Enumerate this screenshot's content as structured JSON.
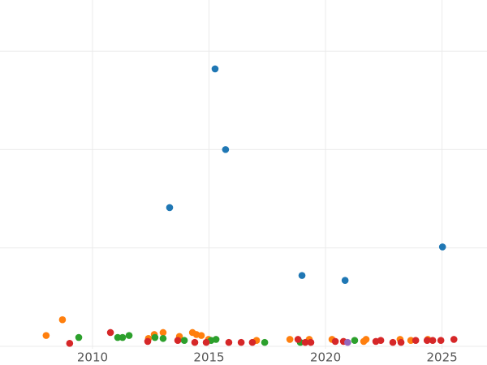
{
  "chart_data": {
    "type": "scatter",
    "xlim": [
      2006.03,
      2026.93
    ],
    "ylim": [
      -0.025,
      3.52
    ],
    "xticks": [
      2010,
      2015,
      2020,
      2025
    ],
    "ygrid": [
      0,
      1,
      2,
      3
    ],
    "grid": true,
    "series": [
      {
        "color": "#1f77b4",
        "x": [
          2015.26,
          2015.71,
          2013.31,
          2025.02,
          2018.99,
          2020.84
        ],
        "values": [
          2.82,
          2.0,
          1.41,
          1.01,
          0.72,
          0.67
        ]
      },
      {
        "color": "#ff7f0e",
        "x": [
          2008.01,
          2008.71,
          2012.4,
          2012.65,
          2013.03,
          2013.73,
          2014.29,
          2014.46,
          2014.67,
          2014.98,
          2017.04,
          2018.47,
          2019.3,
          2020.28,
          2021.64,
          2021.74,
          2023.2,
          2023.66,
          2024.39
        ],
        "values": [
          0.11,
          0.27,
          0.08,
          0.12,
          0.14,
          0.1,
          0.14,
          0.12,
          0.11,
          0.07,
          0.06,
          0.07,
          0.07,
          0.07,
          0.05,
          0.07,
          0.07,
          0.06,
          0.07
        ]
      },
      {
        "color": "#2ca02c",
        "x": [
          2009.41,
          2011.08,
          2011.29,
          2011.57,
          2012.68,
          2013.03,
          2013.94,
          2015.09,
          2015.3,
          2017.39,
          2018.92,
          2021.25
        ],
        "values": [
          0.09,
          0.09,
          0.09,
          0.11,
          0.09,
          0.08,
          0.06,
          0.06,
          0.07,
          0.04,
          0.04,
          0.06
        ]
      },
      {
        "color": "#d62728",
        "x": [
          2009.02,
          2010.77,
          2012.37,
          2013.66,
          2014.39,
          2014.88,
          2015.85,
          2016.38,
          2016.86,
          2018.82,
          2019.13,
          2019.37,
          2020.42,
          2020.77,
          2022.16,
          2022.37,
          2022.89,
          2023.24,
          2023.87,
          2024.36,
          2024.6,
          2024.95,
          2025.51
        ],
        "values": [
          0.03,
          0.14,
          0.05,
          0.06,
          0.04,
          0.04,
          0.04,
          0.04,
          0.04,
          0.07,
          0.04,
          0.04,
          0.05,
          0.05,
          0.05,
          0.06,
          0.04,
          0.04,
          0.06,
          0.06,
          0.06,
          0.06,
          0.07
        ]
      },
      {
        "color": "#9467bd",
        "x": [
          2020.95
        ],
        "values": [
          0.04
        ]
      }
    ]
  }
}
